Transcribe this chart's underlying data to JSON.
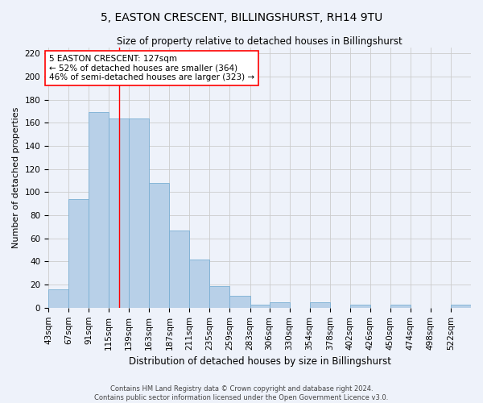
{
  "title": "5, EASTON CRESCENT, BILLINGSHURST, RH14 9TU",
  "subtitle": "Size of property relative to detached houses in Billingshurst",
  "xlabel": "Distribution of detached houses by size in Billingshurst",
  "ylabel": "Number of detached properties",
  "footer_line1": "Contains HM Land Registry data © Crown copyright and database right 2024.",
  "footer_line2": "Contains public sector information licensed under the Open Government Licence v3.0.",
  "categories": [
    "43sqm",
    "67sqm",
    "91sqm",
    "115sqm",
    "139sqm",
    "163sqm",
    "187sqm",
    "211sqm",
    "235sqm",
    "259sqm",
    "283sqm",
    "306sqm",
    "330sqm",
    "354sqm",
    "378sqm",
    "402sqm",
    "426sqm",
    "450sqm",
    "474sqm",
    "498sqm",
    "522sqm"
  ],
  "values": [
    16,
    94,
    169,
    164,
    164,
    108,
    67,
    42,
    19,
    10,
    3,
    5,
    0,
    5,
    0,
    3,
    0,
    3,
    0,
    0,
    3
  ],
  "bar_color": "#b8d0e8",
  "bar_edge_color": "#7aafd4",
  "bar_linewidth": 0.6,
  "grid_color": "#cccccc",
  "background_color": "#eef2fa",
  "red_line_x": 127,
  "bin_edges": [
    43,
    67,
    91,
    115,
    139,
    163,
    187,
    211,
    235,
    259,
    283,
    306,
    330,
    354,
    378,
    402,
    426,
    450,
    474,
    498,
    522,
    546
  ],
  "annotation_line1": "5 EASTON CRESCENT: 127sqm",
  "annotation_line2": "← 52% of detached houses are smaller (364)",
  "annotation_line3": "46% of semi-detached houses are larger (323) →",
  "annotation_fontsize": 7.5,
  "title_fontsize": 10,
  "subtitle_fontsize": 8.5,
  "xlabel_fontsize": 8.5,
  "ylabel_fontsize": 8.0,
  "tick_fontsize": 7.5,
  "ylim": [
    0,
    225
  ],
  "yticks": [
    0,
    20,
    40,
    60,
    80,
    100,
    120,
    140,
    160,
    180,
    200,
    220
  ]
}
